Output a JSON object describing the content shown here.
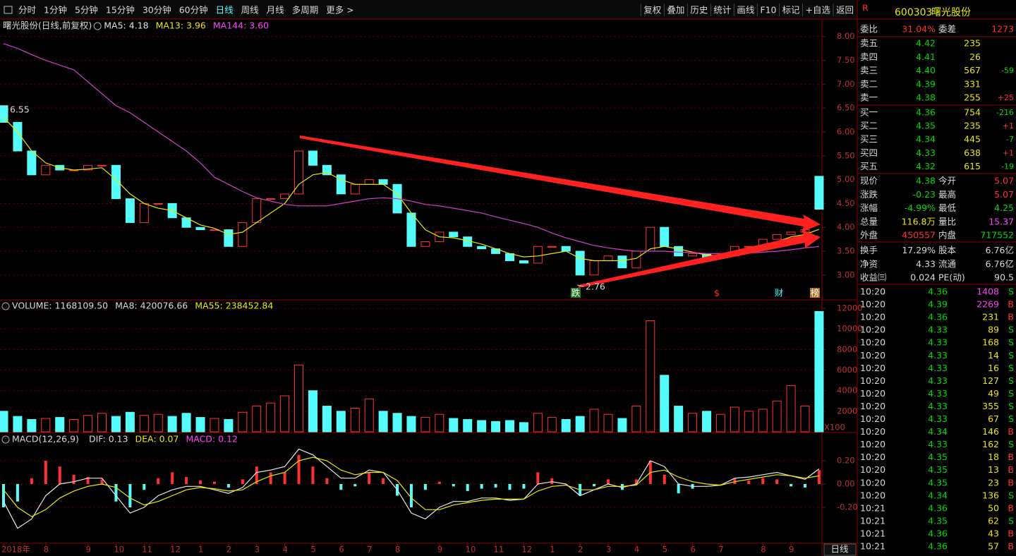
{
  "toolbar": {
    "periods": [
      "分时",
      "1分钟",
      "5分钟",
      "15分钟",
      "30分钟",
      "60分钟",
      "日线",
      "周线",
      "月线",
      "多周期",
      "更多 >"
    ],
    "active": 6,
    "color": "#d8d8d8",
    "active_color": "#54fcfc",
    "tools": [
      "复权",
      "叠加",
      "历史",
      "统计",
      "画线",
      "F10",
      "标记",
      "+自选",
      "返回"
    ]
  },
  "chart_title": "曙光股份(日线,前复权)",
  "price_legend": [
    {
      "name": "MA5:",
      "value": "4.18",
      "color": "#e0e0e0"
    },
    {
      "name": "MA13:",
      "value": "3.96",
      "color": "#e8e800"
    },
    {
      "name": "MA144:",
      "value": "3.60",
      "color": "#ff40ff"
    }
  ],
  "price_marks": {
    "high": "6.55",
    "low": "2.76"
  },
  "markers": [
    "跌",
    "$",
    "财",
    "榜"
  ],
  "bottom_tab": "日线",
  "chart_data": [
    {
      "type": "candlestick",
      "categories": [
        "2018年",
        null,
        null,
        "8",
        null,
        null,
        "9",
        null,
        "10",
        null,
        "11",
        null,
        "12",
        null,
        "1",
        null,
        "2",
        null,
        "3",
        null,
        "4",
        null,
        "5",
        null,
        "6",
        null,
        "7",
        null,
        "8",
        null,
        null,
        "9",
        null,
        "10",
        null,
        "11",
        null,
        "12",
        null,
        "1",
        null,
        "2",
        null,
        "3",
        null,
        "4",
        null,
        "5",
        null,
        "6",
        null,
        "7",
        null,
        null,
        "8",
        null,
        "9",
        null,
        null
      ],
      "open": [
        6.55,
        6.2,
        5.6,
        5.1,
        5.3,
        5.2,
        5.2,
        5.3,
        5.3,
        4.6,
        4.1,
        4.5,
        4.5,
        4.2,
        4.0,
        3.95,
        3.95,
        3.6,
        4.1,
        4.6,
        4.6,
        4.7,
        5.6,
        5.3,
        5.1,
        4.7,
        4.9,
        5.0,
        4.9,
        4.3,
        3.6,
        3.7,
        3.9,
        3.8,
        3.6,
        3.55,
        3.45,
        3.3,
        3.25,
        3.6,
        3.6,
        3.5,
        3.0,
        3.3,
        3.4,
        3.15,
        3.5,
        4.0,
        3.6,
        3.4,
        3.45,
        3.35,
        3.4,
        3.6,
        3.6,
        3.75,
        3.85,
        3.9,
        5.07
      ],
      "close": [
        6.2,
        5.6,
        5.1,
        5.3,
        5.2,
        5.2,
        5.3,
        5.3,
        4.6,
        4.1,
        4.5,
        4.5,
        4.2,
        4.0,
        3.95,
        3.95,
        3.6,
        4.1,
        4.6,
        4.6,
        4.7,
        5.6,
        5.3,
        5.1,
        4.7,
        4.9,
        5.0,
        4.9,
        4.3,
        3.6,
        3.7,
        3.9,
        3.8,
        3.6,
        3.55,
        3.45,
        3.3,
        3.25,
        3.6,
        3.6,
        3.5,
        3.0,
        3.3,
        3.4,
        3.15,
        3.5,
        4.0,
        3.6,
        3.4,
        3.45,
        3.35,
        3.4,
        3.6,
        3.6,
        3.75,
        3.85,
        3.9,
        3.95,
        4.38
      ],
      "series": [
        {
          "color": "#e8e800",
          "values": [
            6.3,
            6.0,
            5.6,
            5.35,
            5.25,
            5.2,
            5.22,
            5.25,
            5.0,
            4.7,
            4.5,
            4.4,
            4.35,
            4.2,
            4.05,
            3.98,
            3.85,
            3.9,
            4.1,
            4.3,
            4.5,
            4.9,
            5.1,
            5.15,
            5.0,
            4.9,
            4.9,
            4.9,
            4.7,
            4.3,
            3.95,
            3.8,
            3.78,
            3.72,
            3.65,
            3.55,
            3.45,
            3.38,
            3.4,
            3.45,
            3.5,
            3.35,
            3.3,
            3.3,
            3.3,
            3.35,
            3.55,
            3.6,
            3.55,
            3.48,
            3.42,
            3.4,
            3.45,
            3.5,
            3.6,
            3.7,
            3.8,
            3.85,
            3.96
          ]
        },
        {
          "color": "#d040d0",
          "values": [
            7.85,
            7.75,
            7.62,
            7.5,
            7.4,
            7.3,
            7.05,
            6.8,
            6.55,
            6.4,
            6.2,
            6.0,
            5.8,
            5.6,
            5.35,
            5.05,
            4.9,
            4.75,
            4.62,
            4.55,
            4.48,
            4.45,
            4.45,
            4.45,
            4.5,
            4.55,
            4.6,
            4.62,
            4.6,
            4.55,
            4.48,
            4.45,
            4.4,
            4.35,
            4.3,
            4.22,
            4.15,
            4.08,
            4.0,
            3.88,
            3.78,
            3.7,
            3.62,
            3.57,
            3.53,
            3.5,
            3.5,
            3.5,
            3.48,
            3.47,
            3.45,
            3.45,
            3.45,
            3.46,
            3.48,
            3.5,
            3.53,
            3.57,
            3.6
          ]
        }
      ],
      "ylim": [
        2.48,
        8.35
      ],
      "yticks": [
        {
          "value": 3,
          "label": "3.00"
        },
        {
          "value": 3.5,
          "label": "3.50"
        },
        {
          "value": 4,
          "label": "4.00"
        },
        {
          "value": 4.5,
          "label": "4.50"
        },
        {
          "value": 5,
          "label": "5.00"
        },
        {
          "value": 5.5,
          "label": "5.50"
        },
        {
          "value": 6,
          "label": "6.00"
        },
        {
          "value": 6.5,
          "label": "6.50"
        },
        {
          "value": 7,
          "label": "7.00"
        },
        {
          "value": 7.5,
          "label": "7.50"
        },
        {
          "value": 8,
          "label": "8.00"
        }
      ],
      "up_color": "#ff3232",
      "down_color": "#54fcfc",
      "grid": true
    },
    {
      "type": "bar",
      "header": [
        {
          "name": "VOLUME:",
          "value": "1168109.50",
          "color": "#d8d8d8"
        },
        {
          "name": "MA8:",
          "value": "420076.66",
          "color": "#d8d8d8"
        },
        {
          "name": "MA55:",
          "value": "238452.84",
          "color": "#e8e800"
        }
      ],
      "values": [
        2000,
        1500,
        1200,
        1300,
        1400,
        1200,
        1600,
        1800,
        1500,
        1900,
        1600,
        1700,
        1500,
        1800,
        1400,
        1300,
        1200,
        1900,
        2500,
        2800,
        3500,
        6500,
        4000,
        2500,
        2000,
        2300,
        3200,
        2000,
        1800,
        1500,
        1400,
        1700,
        1300,
        1200,
        1100,
        1000,
        1100,
        900,
        1800,
        1400,
        1200,
        1500,
        2200,
        1700,
        1300,
        2500,
        10800,
        5500,
        2500,
        1800,
        2000,
        1700,
        2400,
        2000,
        2200,
        3000,
        4500,
        2500,
        11700
      ],
      "ylim": [
        0,
        12830
      ],
      "yticks": [
        2000,
        4000,
        6000,
        8000,
        10000,
        12000
      ],
      "unit": "X100",
      "grid": true
    },
    {
      "type": "macd",
      "header": [
        {
          "name": "MACD(12,26,9)",
          "value": "",
          "color": "#d8d8d8"
        },
        {
          "name": "DIF:",
          "value": "0.13",
          "color": "#d8d8d8"
        },
        {
          "name": "DEA:",
          "value": "0.07",
          "color": "#e8e800"
        },
        {
          "name": "MACD:",
          "value": "0.12",
          "color": "#ff40ff"
        }
      ],
      "values": [
        -0.2,
        -0.15,
        0.05,
        0.2,
        0.15,
        0.08,
        0.06,
        0.04,
        -0.15,
        -0.2,
        -0.05,
        0.05,
        0.1,
        0.06,
        0.03,
        0.02,
        -0.03,
        0.04,
        0.15,
        0.1,
        0.1,
        0.25,
        0.15,
        0.05,
        -0.05,
        -0.02,
        0.1,
        0.05,
        -0.1,
        -0.2,
        -0.05,
        0.02,
        -0.02,
        -0.06,
        -0.04,
        -0.03,
        -0.05,
        -0.04,
        0.1,
        0.05,
        0.0,
        -0.1,
        -0.02,
        0.04,
        -0.05,
        0.04,
        0.2,
        0.08,
        -0.08,
        -0.04,
        0.0,
        0.0,
        0.05,
        0.03,
        0.05,
        0.04,
        -0.02,
        -0.03,
        0.12
      ],
      "series": [
        {
          "color": "#e8e8e8",
          "values": [
            -0.15,
            -0.38,
            -0.3,
            -0.1,
            0.0,
            0.02,
            0.05,
            0.05,
            -0.1,
            -0.25,
            -0.2,
            -0.1,
            -0.05,
            -0.02,
            -0.02,
            -0.05,
            -0.08,
            -0.03,
            0.1,
            0.12,
            0.15,
            0.3,
            0.25,
            0.15,
            0.05,
            0.05,
            0.12,
            0.1,
            -0.05,
            -0.25,
            -0.3,
            -0.2,
            -0.15,
            -0.15,
            -0.12,
            -0.12,
            -0.14,
            -0.13,
            0.0,
            0.02,
            0.0,
            -0.1,
            -0.05,
            0.0,
            -0.03,
            0.0,
            0.2,
            0.15,
            0.0,
            -0.02,
            -0.02,
            -0.01,
            0.05,
            0.06,
            0.08,
            0.1,
            0.07,
            0.04,
            0.13
          ]
        },
        {
          "color": "#e8e800",
          "values": [
            -0.05,
            -0.2,
            -0.28,
            -0.22,
            -0.12,
            -0.06,
            -0.02,
            0.0,
            -0.03,
            -0.12,
            -0.18,
            -0.15,
            -0.1,
            -0.05,
            -0.03,
            -0.04,
            -0.06,
            -0.05,
            0.02,
            0.07,
            0.1,
            0.2,
            0.23,
            0.2,
            0.12,
            0.08,
            0.1,
            0.1,
            0.03,
            -0.12,
            -0.22,
            -0.22,
            -0.18,
            -0.16,
            -0.14,
            -0.13,
            -0.13,
            -0.13,
            -0.06,
            -0.02,
            -0.01,
            -0.05,
            -0.05,
            -0.02,
            -0.02,
            -0.01,
            0.1,
            0.12,
            0.06,
            0.02,
            0.0,
            -0.01,
            0.02,
            0.04,
            0.06,
            0.08,
            0.07,
            0.05,
            0.07
          ]
        }
      ],
      "ylim": [
        -0.509,
        0.436
      ],
      "yticks": [
        {
          "value": -0.2,
          "label": "-0.20"
        },
        {
          "value": 0,
          "label": "0.00"
        },
        {
          "value": 0.2,
          "label": "0.20"
        }
      ],
      "up_color": "#ff3232",
      "down_color": "#54fcfc",
      "grid": true
    }
  ],
  "quote": {
    "flag": "R",
    "code": "600303",
    "name": "曙光股份",
    "ratio": [
      "委比",
      "31.04%",
      "委差",
      "1273"
    ],
    "ratio_color": "#ff3232",
    "order_book": {
      "rows": [
        [
          "卖五",
          "4.42",
          "235"
        ],
        [
          "卖四",
          "4.41",
          "26"
        ],
        [
          "卖三",
          "4.40",
          "567",
          "-59"
        ],
        [
          "卖二",
          "4.39",
          "331"
        ],
        [
          "卖一",
          "4.38",
          "255",
          "+25"
        ],
        [
          "买一",
          "4.36",
          "754",
          "-216"
        ],
        [
          "买二",
          "4.35",
          "235",
          "+1"
        ],
        [
          "买三",
          "4.34",
          "445",
          "-7"
        ],
        [
          "买四",
          "4.33",
          "638",
          "+1"
        ],
        [
          "买五",
          "4.32",
          "615",
          "-19"
        ]
      ],
      "label_color": "#d8d8d8",
      "price_color": "#00d800",
      "volume_color": "#e8e800",
      "change_colors": {
        "+": "#ff3232",
        "-": "#00d800"
      }
    },
    "stats": {
      "rows": [
        [
          "现价",
          "4.38",
          "今开",
          "5.07"
        ],
        [
          "涨跌",
          "-0.23",
          "最高",
          "5.07"
        ],
        [
          "涨幅",
          "-4.99%",
          "最低",
          "4.25"
        ],
        [
          "总量",
          "116.8万",
          "量比",
          "15.37"
        ],
        [
          "外盘",
          "450557",
          "内盘",
          "717552"
        ],
        [
          "换手",
          "17.29%",
          "股本",
          "6.76亿"
        ],
        [
          "净资",
          "4.33",
          "流通",
          "6.76亿"
        ],
        [
          "收益㈢",
          "0.024",
          "PE(动)",
          "90.5"
        ]
      ],
      "value_colors": [
        [
          "#00d800",
          "#ff3232"
        ],
        [
          "#00d800",
          "#ff3232"
        ],
        [
          "#00d800",
          "#00d800"
        ],
        [
          "#e8e800",
          "#ff40ff"
        ],
        [
          "#ff3232",
          "#00d800"
        ],
        [
          "#d8d8d8",
          "#d8d8d8"
        ],
        [
          "#d8d8d8",
          "#d8d8d8"
        ],
        [
          "#d8d8d8",
          "#d8d8d8"
        ]
      ]
    },
    "trades": {
      "rows": [
        [
          "10:20",
          "4.36",
          "1408",
          "S"
        ],
        [
          "10:20",
          "4.39",
          "2269",
          "B"
        ],
        [
          "10:20",
          "4.36",
          "231",
          "B"
        ],
        [
          "10:20",
          "4.33",
          "89",
          "S"
        ],
        [
          "10:20",
          "4.33",
          "168",
          "S"
        ],
        [
          "10:20",
          "4.33",
          "14",
          "S"
        ],
        [
          "10:20",
          "4.33",
          "16",
          "S"
        ],
        [
          "10:20",
          "4.33",
          "127",
          "S"
        ],
        [
          "10:20",
          "4.33",
          "49",
          "S"
        ],
        [
          "10:20",
          "4.33",
          "355",
          "S"
        ],
        [
          "10:20",
          "4.33",
          "67",
          "S"
        ],
        [
          "10:20",
          "4.34",
          "146",
          "B"
        ],
        [
          "10:20",
          "4.33",
          "162",
          "S"
        ],
        [
          "10:20",
          "4.35",
          "18",
          "B"
        ],
        [
          "10:20",
          "4.35",
          "13",
          "B"
        ],
        [
          "10:20",
          "4.35",
          "23",
          "B"
        ],
        [
          "10:20",
          "4.34",
          "136",
          "S"
        ],
        [
          "10:21",
          "4.36",
          "50",
          "B"
        ],
        [
          "10:21",
          "4.35",
          "62",
          "S"
        ],
        [
          "10:21",
          "4.36",
          "43",
          "B"
        ],
        [
          "10:21",
          "4.36",
          "57",
          "B"
        ]
      ],
      "volume_colors": [
        "#ff40ff",
        "#ff40ff",
        "#e8e800",
        "#e8e800",
        "#e8e800",
        "#e8e800",
        "#e8e800",
        "#e8e800",
        "#e8e800",
        "#e8e800",
        "#e8e800",
        "#e8e800",
        "#e8e800",
        "#e8e800",
        "#e8e800",
        "#e8e800",
        "#e8e800",
        "#e8e800",
        "#e8e800",
        "#e8e800",
        "#e8e800"
      ],
      "side_colors": {
        "B": "#ff3232",
        "S": "#00d800"
      }
    }
  }
}
